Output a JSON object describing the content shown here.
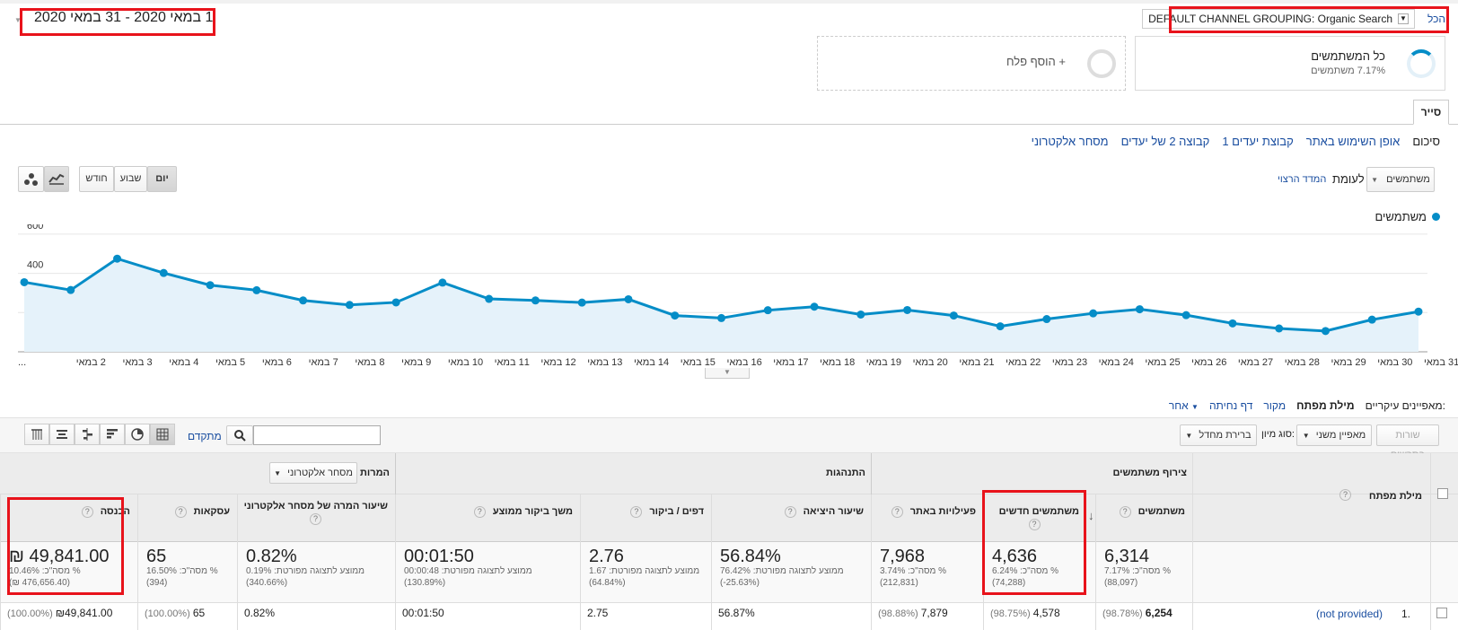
{
  "header": {
    "all_link": "הכל",
    "segment_filter": "DEFAULT CHANNEL GROUPING: Organic Search",
    "date_range": "1 במאי 2020 - 31 במאי 2020"
  },
  "segments": {
    "all_users_title": "כל המשתמשים",
    "all_users_sub": "7.17% משתמשים",
    "add_segment": "+ הוסף פלח"
  },
  "explorer_tab": "סייר",
  "subtabs": [
    "סיכום",
    "אופן השימוש באתר",
    "קבוצת יעדים 1",
    "קבוצה 2 של יעדים",
    "מסחר אלקטרוני"
  ],
  "controls": {
    "metric_select": "משתמשים",
    "versus": "לעומת",
    "select_metric_link": "המדד הרצוי",
    "period_day": "יום",
    "period_week": "שבוע",
    "period_month": "חודש",
    "legend_label": "משתמשים"
  },
  "chart_data": {
    "type": "area",
    "series": [
      {
        "name": "משתמשים",
        "values": [
          355,
          315,
          475,
          402,
          340,
          314,
          262,
          239,
          252,
          353,
          270,
          262,
          251,
          268,
          185,
          172,
          212,
          230,
          190,
          213,
          185,
          130,
          167,
          196,
          217,
          187,
          145,
          119,
          106,
          164,
          205
        ]
      }
    ],
    "x": [
      "1 במאי",
      "2 במאי",
      "3 במאי",
      "4 במאי",
      "5 במאי",
      "6 במאי",
      "7 במאי",
      "8 במאי",
      "9 במאי",
      "10 במאי",
      "11 במאי",
      "12 במאי",
      "13 במאי",
      "14 במאי",
      "15 במאי",
      "16 במאי",
      "17 במאי",
      "18 במאי",
      "19 במאי",
      "20 במאי",
      "21 במאי",
      "22 במאי",
      "23 במאי",
      "24 במאי",
      "25 במאי",
      "26 במאי",
      "27 במאי",
      "28 במאי",
      "29 במאי",
      "30 במאי",
      "31 במאי"
    ],
    "x_tick_labels": [
      "...",
      "2 במאי",
      "3 במאי",
      "4 במאי",
      "5 במאי",
      "6 במאי",
      "7 במאי",
      "8 במאי",
      "9 במאי",
      "10 במאי",
      "11 במאי",
      "12 במאי",
      "13 במאי",
      "14 במאי",
      "15 במאי",
      "16 במאי",
      "17 במאי",
      "18 במאי",
      "19 במאי",
      "20 במאי",
      "21 במאי",
      "22 במאי",
      "23 במאי",
      "24 במאי",
      "25 במאי",
      "26 במאי",
      "27 במאי",
      "28 במאי",
      "29 במאי",
      "30 במאי",
      "31 במאי"
    ],
    "yticks": [
      200,
      400,
      600
    ],
    "ylim": [
      0,
      650
    ],
    "grid": true,
    "color": "#058dc7"
  },
  "dimensions": {
    "label": "מאפיינים עיקריים:",
    "active": "מילת מפתח",
    "others": [
      "מקור",
      "דף נחיתה",
      "אחר"
    ]
  },
  "toolbar": {
    "plot_rows": "שורות בתרשים",
    "secondary_dim": "מאפיין משני",
    "sort_type_label": "סוג מיון:",
    "sort_default": "ברירת מחדל",
    "advanced": "מתקדם"
  },
  "table": {
    "group_acquisition": "צירוף משתמשים",
    "group_behavior": "התנהגות",
    "group_conversions": "המרות",
    "conversions_select": "מסחר אלקטרוני",
    "col_keyword": "מילת מפתח",
    "columns": [
      {
        "label": "משתמשים",
        "total": "6,314",
        "sub1": "% מסה\"כ: 7.17%",
        "sub2": "(88,097)",
        "row": "6,254",
        "row_pct": "(98.78%)"
      },
      {
        "label": "משתמשים חדשים",
        "total": "4,636",
        "sub1": "% מסה\"כ: 6.24%",
        "sub2": "(74,288)",
        "row": "4,578",
        "row_pct": "(98.75%)"
      },
      {
        "label": "פעילויות באתר",
        "total": "7,968",
        "sub1": "% מסה\"כ: 3.74%",
        "sub2": "(212,831)",
        "row": "7,879",
        "row_pct": "(98.88%)"
      },
      {
        "label": "שיעור היציאה",
        "total": "56.84%",
        "sub1": "ממוצע לתצוגה מפורטת: 76.42%",
        "sub2": "(-25.63%)",
        "row": "56.87%",
        "row_pct": ""
      },
      {
        "label": "דפים / ביקור",
        "total": "2.76",
        "sub1": "ממוצע לתצוגה מפורטת: 1.67",
        "sub2": "(64.84%)",
        "row": "2.75",
        "row_pct": ""
      },
      {
        "label": "משך ביקור ממוצע",
        "total": "00:01:50",
        "sub1": "ממוצע לתצוגה מפורטת: 00:00:48",
        "sub2": "(130.89%)",
        "row": "00:01:50",
        "row_pct": ""
      },
      {
        "label": "שיעור המרה של מסחר אלקטרוני",
        "total": "0.82%",
        "sub1": "ממוצע לתצוגה מפורטת: 0.19%",
        "sub2": "(340.66%)",
        "row": "0.82%",
        "row_pct": ""
      },
      {
        "label": "עסקאות",
        "total": "65",
        "sub1": "% מסה\"כ: 16.50%",
        "sub2": "(394)",
        "row": "65",
        "row_pct": "(100.00%)"
      },
      {
        "label": "הכנסה",
        "total": "₪ 49,841.00",
        "sub1": "% מסה\"כ: 10.46%",
        "sub2": "(₪ 476,656.40)",
        "row": "₪49,841.00",
        "row_pct": "(100.00%)"
      }
    ],
    "row1_index": "1.",
    "row1_keyword": "(not provided)"
  }
}
